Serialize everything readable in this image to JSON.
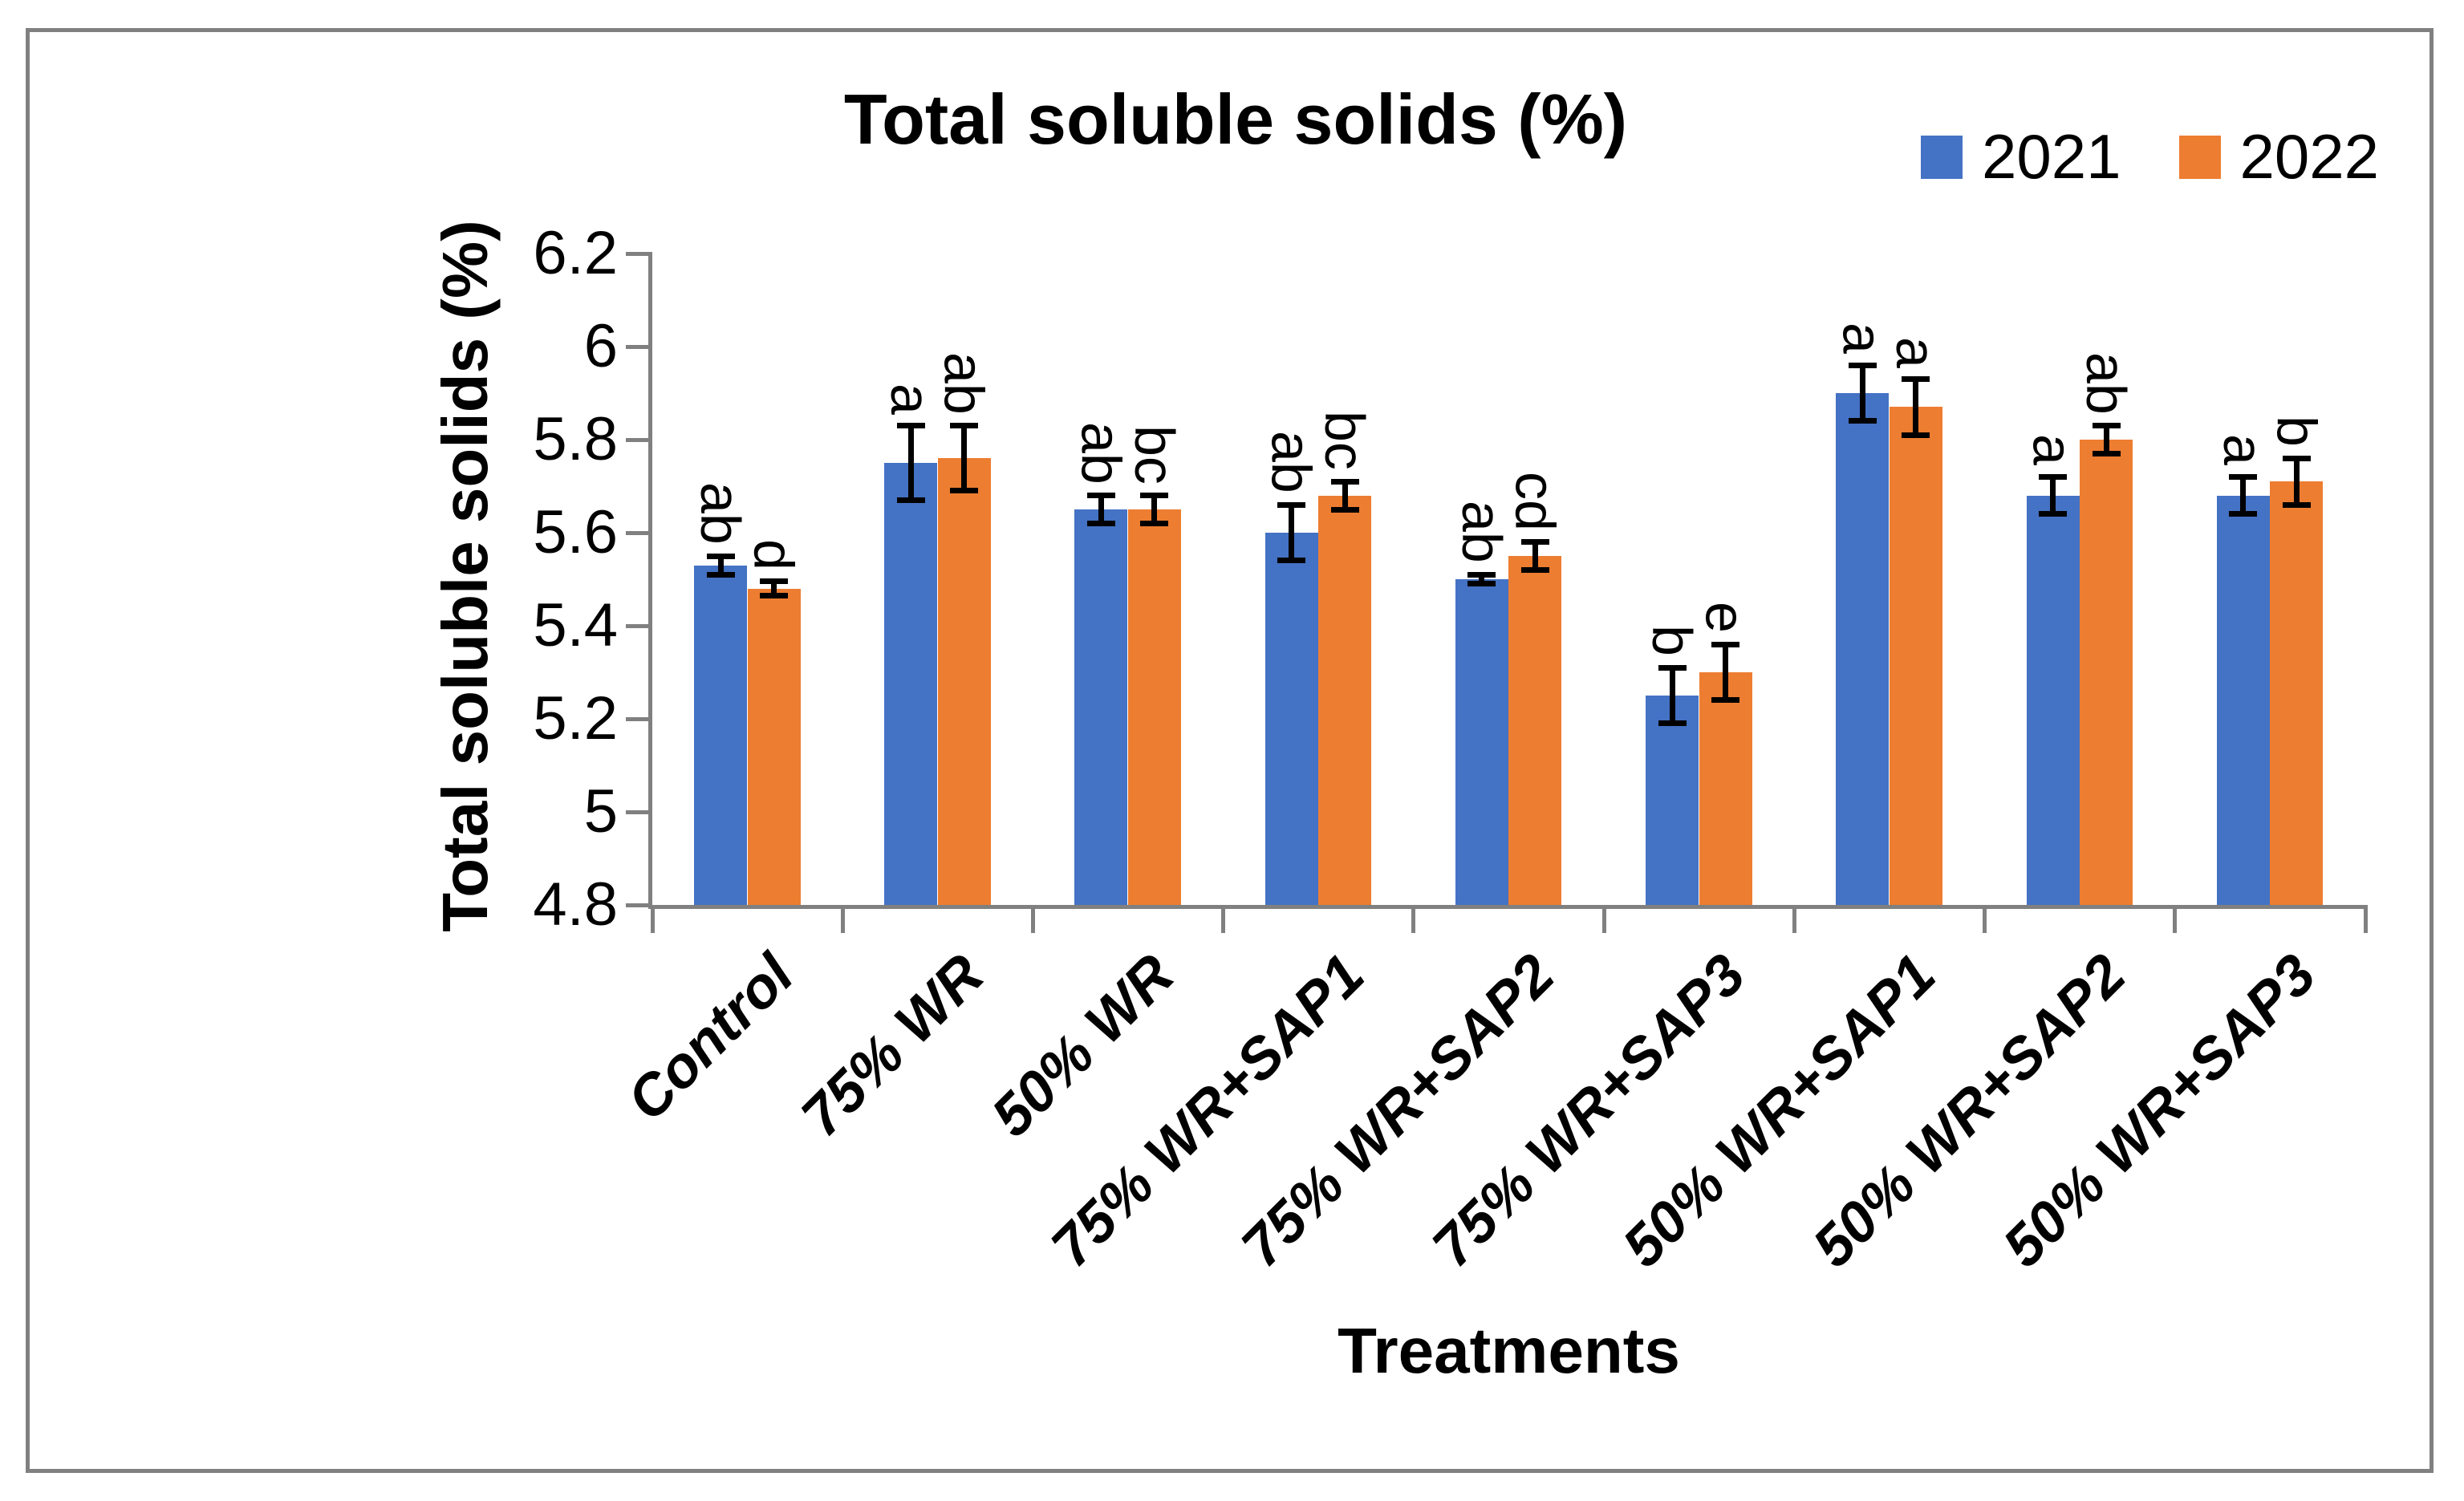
{
  "figure": {
    "title": "Total soluble solids (%)",
    "y_axis_title": "Total soluble solids (%)",
    "x_axis_title": "Treatments"
  },
  "colors": {
    "series_2021": "#4472C4",
    "series_2022": "#ED7D31",
    "axis": "#808080",
    "figure_border": "#808080",
    "text": "#000000",
    "error_bar": "#000000"
  },
  "chart_data": {
    "type": "bar",
    "title": "Total soluble solids (%)",
    "xlabel": "Treatments",
    "ylabel": "Total soluble solids (%)",
    "ylim": [
      4.8,
      6.2
    ],
    "y_tick_step": 0.2,
    "y_tick_labels": [
      "6.2",
      "6",
      "5.8",
      "5.6",
      "5.4",
      "5.2",
      "5",
      "4.8"
    ],
    "grid": false,
    "legend_position": "top-right",
    "error_bars": true,
    "bar_label_rotation_deg": 90,
    "x_label_rotation_deg": -45,
    "categories": [
      "Control",
      "75% WR",
      "50% WR",
      "75% WR+SAP1",
      "75% WR+SAP2",
      "75% WR+SAP3",
      "50% WR+SAP1",
      "50% WR+SAP2",
      "50% WR+SAP3"
    ],
    "series": [
      {
        "name": "2021",
        "color": "#4472C4",
        "values": [
          5.53,
          5.75,
          5.65,
          5.6,
          5.5,
          5.25,
          5.9,
          5.68,
          5.68
        ],
        "errors": [
          0.02,
          0.08,
          0.03,
          0.06,
          0.01,
          0.06,
          0.06,
          0.04,
          0.04
        ],
        "letters": [
          "ab",
          "a",
          "ab",
          "ab",
          "ab",
          "b",
          "a",
          "a",
          "a"
        ]
      },
      {
        "name": "2022",
        "color": "#ED7D31",
        "values": [
          5.48,
          5.76,
          5.65,
          5.68,
          5.55,
          5.3,
          5.87,
          5.8,
          5.71
        ],
        "errors": [
          0.015,
          0.07,
          0.03,
          0.03,
          0.03,
          0.06,
          0.06,
          0.03,
          0.05
        ],
        "letters": [
          "d",
          "ab",
          "bc",
          "bc",
          "cd",
          "e",
          "a",
          "ab",
          "b"
        ]
      }
    ]
  }
}
